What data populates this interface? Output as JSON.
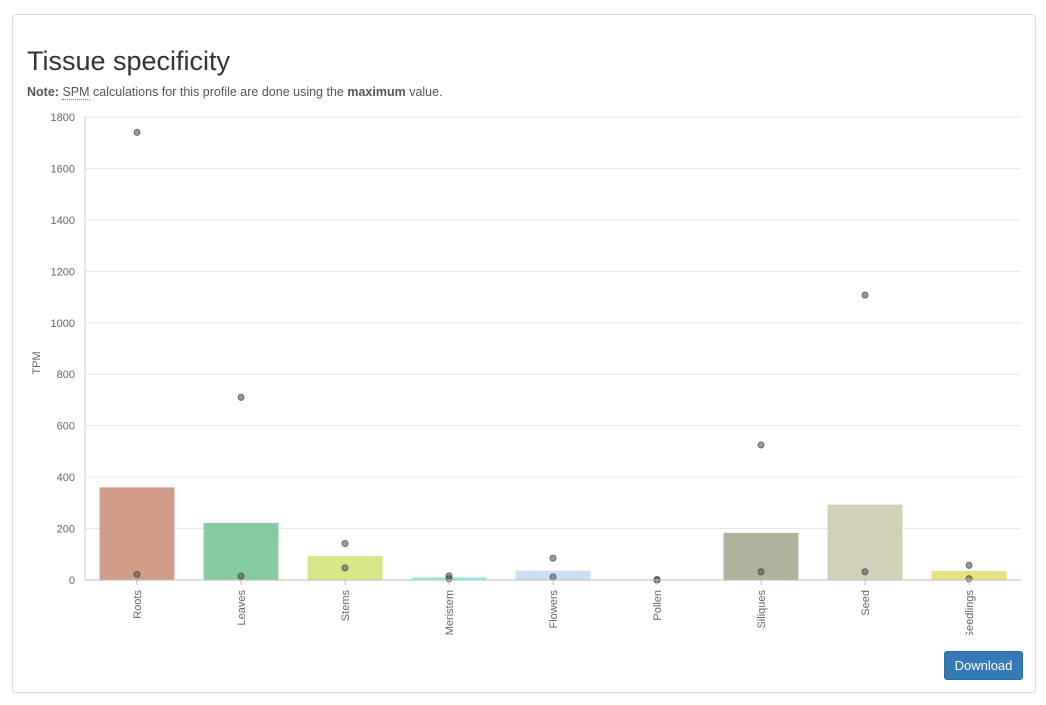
{
  "header": {
    "title": "Tissue specificity",
    "note_label": "Note:",
    "note_abbr": "SPM",
    "note_text_1": "calculations for this profile are done using the",
    "note_bold": "maximum",
    "note_text_2": "value."
  },
  "actions": {
    "download_label": "Download"
  },
  "chart_data": {
    "type": "bar",
    "title": "",
    "xlabel": "",
    "ylabel": "TPM",
    "ylim": [
      0,
      1800
    ],
    "yticks": [
      0,
      200,
      400,
      600,
      800,
      1000,
      1200,
      1400,
      1600,
      1800
    ],
    "grid": true,
    "categories": [
      "Roots",
      "Leaves",
      "Stems",
      "Meristem",
      "Flowers",
      "Pollen",
      "Siliques",
      "Seed",
      "Seedlings"
    ],
    "values": [
      360,
      222,
      93,
      10,
      36,
      0,
      183,
      293,
      35
    ],
    "colors": [
      "#c9917a",
      "#78c893",
      "#d2e47a",
      "#87e8de",
      "#c7dcf4",
      "#cccccc",
      "#a9aa90",
      "#cdcbae",
      "#e2e076"
    ],
    "points": [
      [
        1740,
        22
      ],
      [
        710,
        15
      ],
      [
        142,
        47
      ],
      [
        16,
        5
      ],
      [
        85,
        12
      ],
      [
        2,
        0
      ],
      [
        525,
        32
      ],
      [
        1108,
        32
      ],
      [
        57,
        5
      ]
    ]
  }
}
